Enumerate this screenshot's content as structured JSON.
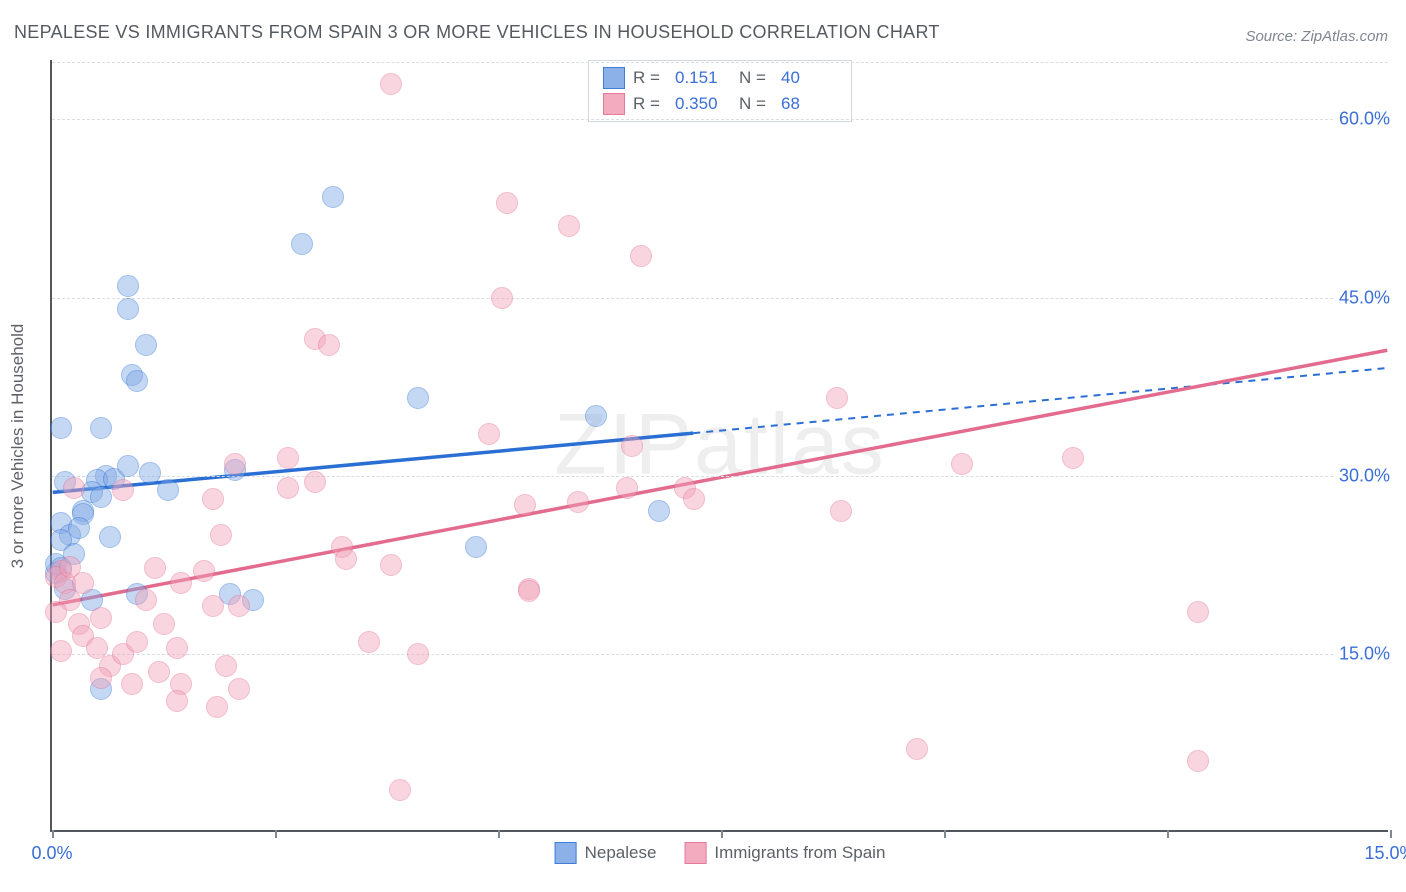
{
  "title": "NEPALESE VS IMMIGRANTS FROM SPAIN 3 OR MORE VEHICLES IN HOUSEHOLD CORRELATION CHART",
  "source": "Source: ZipAtlas.com",
  "watermark": "ZIPatlas",
  "ylabel": "3 or more Vehicles in Household",
  "chart": {
    "type": "scatter",
    "background_color": "#ffffff",
    "grid_color": "#d8dde2",
    "axis_color": "#53575c",
    "label_color": "#3a6fd8",
    "xlim": [
      0,
      15
    ],
    "ylim": [
      0,
      65
    ],
    "xticks": [
      0,
      2.5,
      5,
      7.5,
      10,
      12.5,
      15
    ],
    "xticks_labeled": [
      0,
      15
    ],
    "yticks": [
      15,
      30,
      45,
      60
    ],
    "marker_radius": 11,
    "marker_opacity": 0.45,
    "series": [
      {
        "id": "nepalese",
        "label": "Nepalese",
        "fill": "#7fa9e6",
        "stroke": "#2b6fd4",
        "line_color": "#2b6fd4",
        "R": "0.151",
        "N": "40",
        "trend": {
          "x1": 0,
          "y1": 28.5,
          "x2": 7.2,
          "y2": 33.5,
          "x2ext": 15,
          "y2ext": 39.0
        },
        "points": [
          [
            0.1,
            34.0
          ],
          [
            0.55,
            34.0
          ],
          [
            0.15,
            29.5
          ],
          [
            0.35,
            27.0
          ],
          [
            0.1,
            26.0
          ],
          [
            0.2,
            25.0
          ],
          [
            0.6,
            30.0
          ],
          [
            0.5,
            29.6
          ],
          [
            0.7,
            29.7
          ],
          [
            1.1,
            30.2
          ],
          [
            0.45,
            28.6
          ],
          [
            0.55,
            28.2
          ],
          [
            0.35,
            26.8
          ],
          [
            0.3,
            25.6
          ],
          [
            0.1,
            24.6
          ],
          [
            0.05,
            21.8
          ],
          [
            0.05,
            22.6
          ],
          [
            0.15,
            20.5
          ],
          [
            0.45,
            19.5
          ],
          [
            0.95,
            20.0
          ],
          [
            0.55,
            12.0
          ],
          [
            0.85,
            46.0
          ],
          [
            0.85,
            44.0
          ],
          [
            0.9,
            38.5
          ],
          [
            0.95,
            38.0
          ],
          [
            1.05,
            41.0
          ],
          [
            3.15,
            53.5
          ],
          [
            2.8,
            49.5
          ],
          [
            2.05,
            30.5
          ],
          [
            2.0,
            20.0
          ],
          [
            2.25,
            19.5
          ],
          [
            4.75,
            24.0
          ],
          [
            4.1,
            36.5
          ],
          [
            6.1,
            35.0
          ],
          [
            6.8,
            27.0
          ],
          [
            1.3,
            28.8
          ],
          [
            0.25,
            23.4
          ],
          [
            0.65,
            24.8
          ],
          [
            0.1,
            22.2
          ],
          [
            0.85,
            30.8
          ]
        ]
      },
      {
        "id": "spain",
        "label": "Immigrants from Spain",
        "fill": "#f2a3b9",
        "stroke": "#e36b8e",
        "line_color": "#e36b8e",
        "R": "0.350",
        "N": "68",
        "trend": {
          "x1": 0,
          "y1": 19.0,
          "x2": 15,
          "y2": 40.5
        },
        "points": [
          [
            0.1,
            22.0
          ],
          [
            0.05,
            21.5
          ],
          [
            0.15,
            21.0
          ],
          [
            0.2,
            22.3
          ],
          [
            0.35,
            21.0
          ],
          [
            0.2,
            19.5
          ],
          [
            0.05,
            18.5
          ],
          [
            0.3,
            17.5
          ],
          [
            0.55,
            18.0
          ],
          [
            0.35,
            16.5
          ],
          [
            0.5,
            15.5
          ],
          [
            0.65,
            14.0
          ],
          [
            0.8,
            15.0
          ],
          [
            0.95,
            16.0
          ],
          [
            1.25,
            17.5
          ],
          [
            1.4,
            15.5
          ],
          [
            1.45,
            12.5
          ],
          [
            1.4,
            11.0
          ],
          [
            1.85,
            10.5
          ],
          [
            1.95,
            14.0
          ],
          [
            1.8,
            19.0
          ],
          [
            1.05,
            19.5
          ],
          [
            1.15,
            22.2
          ],
          [
            1.7,
            22.0
          ],
          [
            1.45,
            21.0
          ],
          [
            1.8,
            28.0
          ],
          [
            1.9,
            25.0
          ],
          [
            2.1,
            19.0
          ],
          [
            2.65,
            31.5
          ],
          [
            2.95,
            41.5
          ],
          [
            3.1,
            41.0
          ],
          [
            2.65,
            29.0
          ],
          [
            2.95,
            29.5
          ],
          [
            3.25,
            24.0
          ],
          [
            3.3,
            23.0
          ],
          [
            3.8,
            22.5
          ],
          [
            3.55,
            16.0
          ],
          [
            3.8,
            63.0
          ],
          [
            4.9,
            33.5
          ],
          [
            5.05,
            45.0
          ],
          [
            5.1,
            53.0
          ],
          [
            5.8,
            51.0
          ],
          [
            5.35,
            20.5
          ],
          [
            5.35,
            20.3
          ],
          [
            5.3,
            27.5
          ],
          [
            5.9,
            27.8
          ],
          [
            6.45,
            29.0
          ],
          [
            6.5,
            32.5
          ],
          [
            6.6,
            48.5
          ],
          [
            7.1,
            29.0
          ],
          [
            7.2,
            28.0
          ],
          [
            8.85,
            27.0
          ],
          [
            8.8,
            36.5
          ],
          [
            12.85,
            18.5
          ],
          [
            12.85,
            6.0
          ],
          [
            9.7,
            7.0
          ],
          [
            0.1,
            15.2
          ],
          [
            0.55,
            13.0
          ],
          [
            0.9,
            12.5
          ],
          [
            1.2,
            13.5
          ],
          [
            2.1,
            12.0
          ],
          [
            3.9,
            3.5
          ],
          [
            4.1,
            15.0
          ],
          [
            2.05,
            31.0
          ],
          [
            0.25,
            29.0
          ],
          [
            0.8,
            28.8
          ],
          [
            11.45,
            31.5
          ],
          [
            10.2,
            31.0
          ]
        ]
      }
    ]
  },
  "legend_bottom": [
    {
      "series": "nepalese"
    },
    {
      "series": "spain"
    }
  ]
}
